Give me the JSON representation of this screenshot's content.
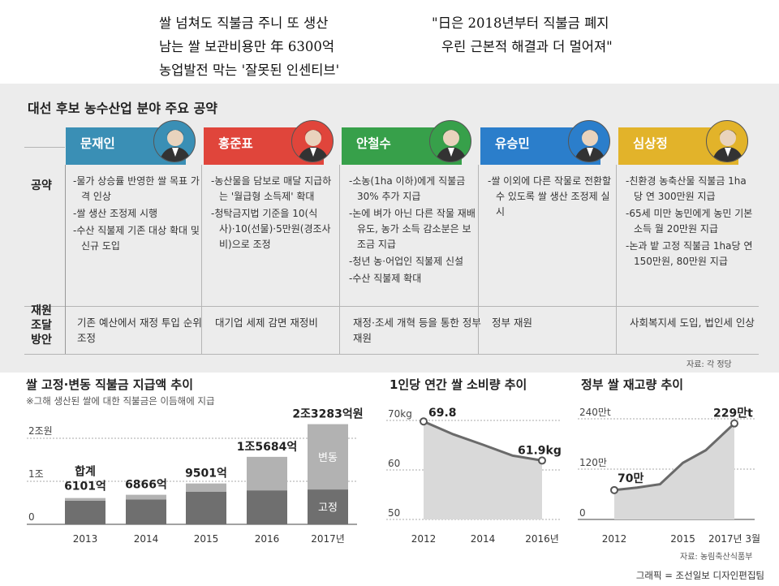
{
  "headline": {
    "left": [
      "쌀 넘쳐도 직불금 주니 또 생산",
      "남는 쌀 보관비용만 年 6300억",
      "농업발전 막는 '잘못된 인센티브'"
    ],
    "right": [
      "\"日은 2018년부터 직불금 폐지",
      "우린 근본적 해결과 더 멀어져\""
    ]
  },
  "pledges": {
    "title": "대선 후보 농수산업 분야 주요 공약",
    "row_pledge": "공약",
    "row_funding": [
      "재원",
      "조달",
      "방안"
    ],
    "source": "자료: 각 정당",
    "candidates": [
      {
        "name": "문재인",
        "color": "#3a8fb5",
        "items": [
          "-물가 상승률 반영한 쌀 목표 가격 인상",
          "-쌀 생산 조정제 시행",
          "-수산 직불제 기존 대상 확대 및 신규 도입"
        ],
        "funding": "기존 예산에서 재정 투입 순위 조정"
      },
      {
        "name": "홍준표",
        "color": "#e0453b",
        "items": [
          "-농산물을 담보로 매달 지급하는 '월급형 소득제' 확대",
          "-청탁금지법 기준을 10(식사)·10(선물)·5만원(경조사비)으로 조정"
        ],
        "funding": "대기업 세제 감면 재정비"
      },
      {
        "name": "안철수",
        "color": "#37a04a",
        "items": [
          "-소농(1ha 이하)에게 직불금 30% 추가 지급",
          "-논에 벼가 아닌 다른 작물 재배 유도, 농가 소득 감소분은 보조금 지급",
          "-청년 농·어업인 직불제 신설",
          "-수산 직불제 확대"
        ],
        "funding": "재정·조세 개혁 등을 통한 정부 재원"
      },
      {
        "name": "유승민",
        "color": "#2b7ecb",
        "items": [
          "-쌀 이외에 다른 작물로 전환할 수 있도록 쌀 생산 조정제 실시"
        ],
        "funding": "정부 재원"
      },
      {
        "name": "심상정",
        "color": "#e2b32a",
        "items": [
          "-친환경 농축산물 직불금 1ha당 연 300만원 지급",
          "-65세 미만 농민에게 농민 기본 소득 월 20만원 지급",
          "-논과 밭 고정 직불금 1ha당 연 150만원, 80만원 지급"
        ],
        "funding": "사회복지세 도입, 법인세 인상"
      }
    ]
  },
  "charts": {
    "subsidy": {
      "title": "쌀 고정·변동 직불금 지급액 추이",
      "note": "※그해 생산된 쌀에 대한 직불금은 이듬해에 지급"
    },
    "consumption": {
      "title": "1인당 연간 쌀 소비량 추이"
    },
    "stock": {
      "title": "정부 쌀 재고량 추이",
      "source": "자료: 농림축산식품부"
    }
  },
  "chart_data": [
    {
      "type": "bar",
      "title": "쌀 고정·변동 직불금 지급액 추이",
      "categories": [
        "2013",
        "2014",
        "2015",
        "2016",
        "2017년"
      ],
      "ytick_labels": [
        "0",
        "1조",
        "2조원"
      ],
      "ylim": [
        0,
        2
      ],
      "series": [
        {
          "name": "고정",
          "values": [
            0.55,
            0.58,
            0.76,
            0.79,
            0.81
          ]
        },
        {
          "name": "변동",
          "values": [
            0.0607,
            0.1066,
            0.1901,
            0.7784,
            1.5183
          ]
        }
      ],
      "total_labels": [
        "합계 6101억",
        "6866억",
        "9501억",
        "1조5684억",
        "2조3283억원"
      ],
      "colors": {
        "fixed": "#6f6f6f",
        "variable": "#b2b2b2"
      }
    },
    {
      "type": "area",
      "title": "1인당 연간 쌀 소비량 추이",
      "x": [
        2012,
        2013,
        2014,
        2015,
        2016
      ],
      "values": [
        69.8,
        67.2,
        65.1,
        62.9,
        61.9
      ],
      "ylim": [
        50,
        70
      ],
      "ytick_labels": [
        "50",
        "60",
        "70kg"
      ],
      "xtick_labels": [
        "2012",
        "2014",
        "2016년"
      ],
      "labels": [
        "69.8",
        "61.9kg"
      ]
    },
    {
      "type": "area",
      "title": "정부 쌀 재고량 추이",
      "x": [
        2012,
        2013,
        2014,
        2015,
        2016,
        2017.25
      ],
      "values": [
        70,
        76,
        84,
        135,
        165,
        229
      ],
      "ylim": [
        0,
        240
      ],
      "ytick_labels": [
        "0",
        "120만",
        "240만t"
      ],
      "xtick_labels": [
        "2012",
        "2015",
        "2017년 3월"
      ],
      "labels": [
        "70만",
        "229만t"
      ]
    }
  ],
  "credit": "그래픽 = 조선일보 디자인편집팀"
}
